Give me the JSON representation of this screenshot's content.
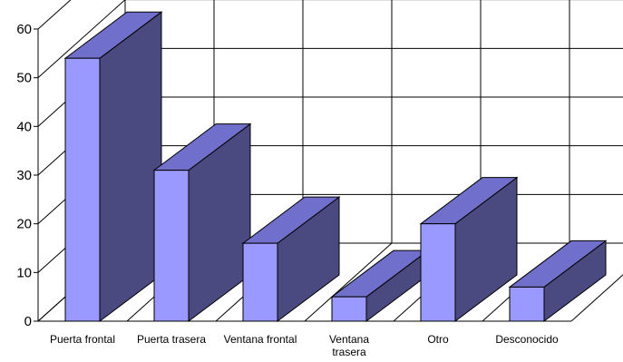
{
  "chart_data": {
    "type": "bar",
    "style": "3d-column",
    "categories": [
      "Puerta frontal",
      "Puerta trasera",
      "Ventana frontal",
      "Ventana trasera",
      "Otro",
      "Desconocido"
    ],
    "values": [
      54,
      31,
      16,
      5,
      20,
      7
    ],
    "ylim": [
      0,
      60
    ],
    "yticks": [
      0,
      10,
      20,
      30,
      40,
      50,
      60
    ],
    "title": "",
    "xlabel": "",
    "ylabel": "",
    "grid": true,
    "legend": "none",
    "colors": {
      "front": "#9999ff",
      "top": "#7070cc",
      "side": "#4a4a80",
      "grid": "#000000"
    }
  }
}
